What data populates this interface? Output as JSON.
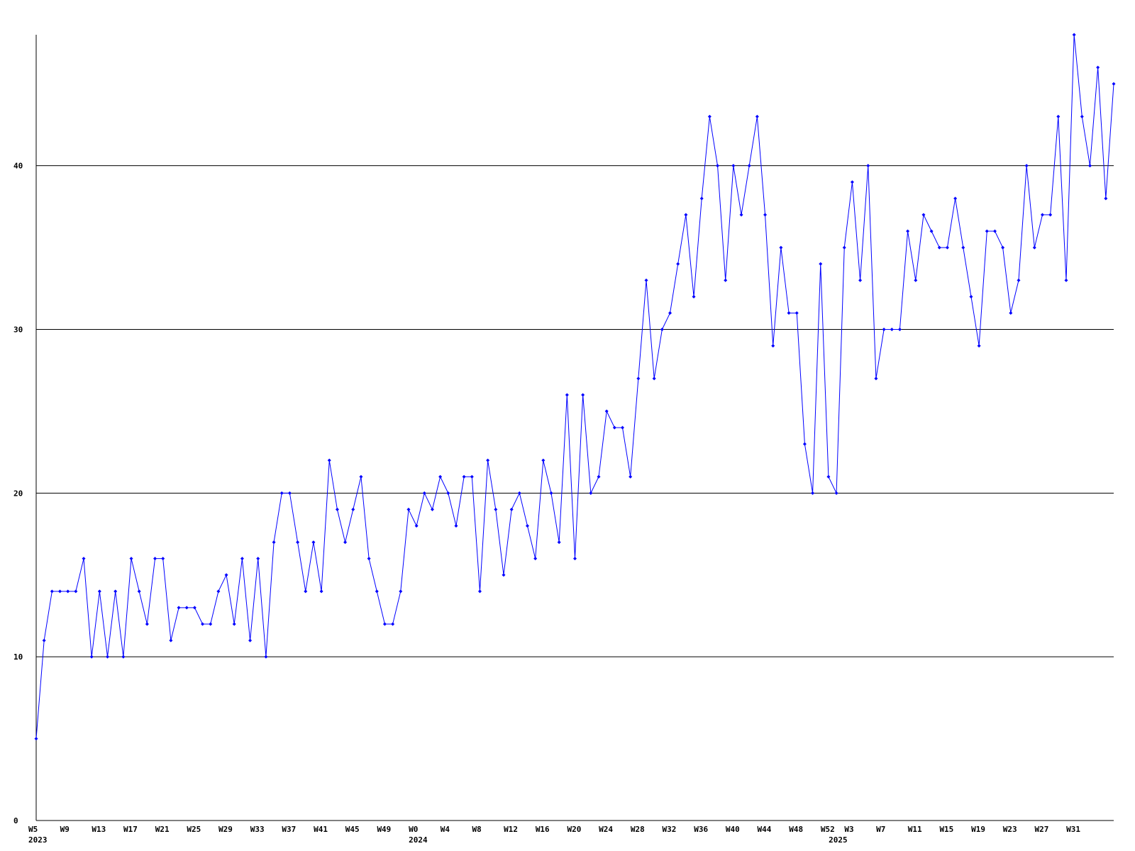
{
  "chart_data": {
    "type": "line",
    "categories": [
      "W5",
      null,
      null,
      null,
      "W9",
      null,
      null,
      null,
      "W13",
      null,
      null,
      null,
      "W17",
      null,
      null,
      null,
      "W21",
      null,
      null,
      null,
      "W25",
      null,
      null,
      null,
      "W29",
      null,
      null,
      null,
      "W33",
      null,
      null,
      null,
      "W37",
      null,
      null,
      null,
      "W41",
      null,
      null,
      null,
      "W45",
      null,
      null,
      null,
      "W49",
      null,
      null,
      null,
      "W0",
      null,
      null,
      null,
      "W4",
      null,
      null,
      null,
      "W8",
      null,
      null,
      null,
      "W12",
      null,
      null,
      null,
      "W16",
      null,
      null,
      null,
      "W20",
      null,
      null,
      null,
      "W24",
      null,
      null,
      null,
      "W28",
      null,
      null,
      null,
      "W32",
      null,
      null,
      null,
      "W36",
      null,
      null,
      null,
      "W40",
      null,
      null,
      null,
      "W44",
      null,
      null,
      null,
      "W48",
      null,
      null,
      null,
      "W52",
      null,
      null,
      "W3",
      null,
      null,
      null,
      "W7",
      null,
      null,
      null,
      "W11",
      null,
      null,
      null,
      "W15",
      null,
      null,
      null,
      "W19",
      null,
      null,
      null,
      "W23",
      null,
      null,
      null,
      "W27",
      null,
      null,
      null,
      "W31",
      null,
      null,
      null,
      null,
      null
    ],
    "years": [
      "2023",
      null,
      null,
      null,
      null,
      null,
      null,
      null,
      null,
      null,
      null,
      null,
      null,
      null,
      null,
      null,
      null,
      null,
      null,
      null,
      null,
      null,
      null,
      null,
      null,
      null,
      null,
      null,
      null,
      null,
      null,
      null,
      null,
      null,
      null,
      null,
      null,
      null,
      null,
      null,
      null,
      null,
      null,
      null,
      null,
      null,
      null,
      null,
      "2024",
      null,
      null,
      null,
      null,
      null,
      null,
      null,
      null,
      null,
      null,
      null,
      null,
      null,
      null,
      null,
      null,
      null,
      null,
      null,
      null,
      null,
      null,
      null,
      null,
      null,
      null,
      null,
      null,
      null,
      null,
      null,
      null,
      null,
      null,
      null,
      null,
      null,
      null,
      null,
      null,
      null,
      null,
      null,
      null,
      null,
      null,
      null,
      null,
      null,
      null,
      null,
      null,
      "2025",
      null,
      null,
      null,
      null,
      null,
      null,
      null,
      null,
      null,
      null,
      null,
      null,
      null,
      null,
      null,
      null,
      null,
      null,
      null,
      null,
      null,
      null,
      null,
      null,
      null,
      null,
      null,
      null,
      null,
      null,
      null,
      null,
      null,
      null,
      null
    ],
    "series": [
      {
        "color": "#0000ff",
        "values": [
          5,
          11,
          14,
          14,
          14,
          14,
          16,
          10,
          14,
          10,
          14,
          10,
          16,
          14,
          12,
          16,
          16,
          11,
          13,
          13,
          13,
          12,
          12,
          14,
          15,
          12,
          16,
          11,
          16,
          10,
          17,
          20,
          20,
          17,
          14,
          17,
          14,
          22,
          19,
          17,
          19,
          21,
          16,
          14,
          12,
          12,
          14,
          19,
          18,
          20,
          19,
          21,
          20,
          18,
          21,
          21,
          14,
          22,
          19,
          15,
          19,
          20,
          18,
          16,
          22,
          20,
          17,
          26,
          16,
          26,
          20,
          21,
          25,
          24,
          24,
          21,
          27,
          33,
          27,
          30,
          31,
          34,
          37,
          32,
          38,
          43,
          40,
          33,
          40,
          37,
          40,
          43,
          37,
          29,
          35,
          31,
          31,
          23,
          20,
          34,
          21,
          20,
          35,
          39,
          33,
          40,
          27,
          30,
          30,
          30,
          36,
          33,
          37,
          36,
          35,
          35,
          38,
          35,
          32,
          29,
          36,
          36,
          35,
          31,
          33,
          40,
          35,
          37,
          37,
          43,
          33,
          48,
          43,
          40,
          46,
          38,
          45
        ]
      }
    ],
    "ylim": [
      0,
      48
    ],
    "yticks": [
      0,
      10,
      20,
      30,
      40
    ],
    "grid": true
  }
}
